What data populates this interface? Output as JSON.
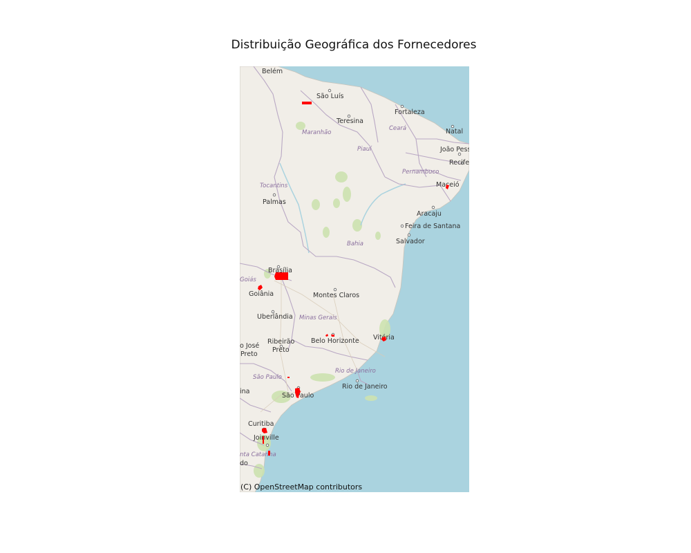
{
  "title": "Distribuição Geográfica dos Fornecedores",
  "attribution": "(C) OpenStreetMap contributors",
  "colors": {
    "land": "#f1eee8",
    "ocean": "#aad3df",
    "state_border": "#b9a8c4",
    "green": "#cde2b0",
    "city_text": "#333333",
    "state_text": "#8a6f9e",
    "supplier": "#ff0000"
  },
  "cities": [
    {
      "id": "belem",
      "name": "Belém"
    },
    {
      "id": "sao-luis",
      "name": "São Luís"
    },
    {
      "id": "fortaleza",
      "name": "Fortaleza"
    },
    {
      "id": "teresina",
      "name": "Teresina"
    },
    {
      "id": "natal",
      "name": "Natal"
    },
    {
      "id": "joao-pessoa",
      "name": "João Pess"
    },
    {
      "id": "recife",
      "name": "Recife"
    },
    {
      "id": "maceio",
      "name": "Maceió"
    },
    {
      "id": "palmas",
      "name": "Palmas"
    },
    {
      "id": "aracaju",
      "name": "Aracaju"
    },
    {
      "id": "feira-de-santana",
      "name": "Feira de Santana"
    },
    {
      "id": "salvador",
      "name": "Salvador"
    },
    {
      "id": "brasilia",
      "name": "Brasília"
    },
    {
      "id": "goiania",
      "name": "Goiânia"
    },
    {
      "id": "montes-claros",
      "name": "Montes Claros"
    },
    {
      "id": "uberlandia",
      "name": "Uberlândia"
    },
    {
      "id": "belo-horizonte",
      "name": "Belo Horizonte"
    },
    {
      "id": "vitoria",
      "name": "Vitória"
    },
    {
      "id": "sao-jose-rio-preto-1",
      "name": "o José"
    },
    {
      "id": "sao-jose-rio-preto-2",
      "name": "Preto"
    },
    {
      "id": "ribeirao-preto-1",
      "name": "Ribeirão"
    },
    {
      "id": "ribeirao-preto-2",
      "name": "Preto"
    },
    {
      "id": "rio-de-janeiro",
      "name": "Rio de Janeiro"
    },
    {
      "id": "sao-paulo",
      "name": "São Paulo"
    },
    {
      "id": "londrina",
      "name": "ina"
    },
    {
      "id": "curitiba",
      "name": "Curitiba"
    },
    {
      "id": "joinville",
      "name": "Joinville"
    },
    {
      "id": "blumenau",
      "name": "do"
    }
  ],
  "states": [
    {
      "id": "maranhao",
      "name": "Maranhão"
    },
    {
      "id": "ceara",
      "name": "Ceará"
    },
    {
      "id": "piaui",
      "name": "Piauí"
    },
    {
      "id": "pernambuco",
      "name": "Pernambuco"
    },
    {
      "id": "tocantins",
      "name": "Tocantins"
    },
    {
      "id": "bahia",
      "name": "Bahia"
    },
    {
      "id": "goias",
      "name": "Goiás"
    },
    {
      "id": "minas-gerais",
      "name": "Minas Gerais"
    },
    {
      "id": "rio-de-janeiro-state",
      "name": "Rio de Janeiro"
    },
    {
      "id": "sao-paulo-state",
      "name": "São Paulo"
    },
    {
      "id": "santa-catarina",
      "name": "nta Catarina"
    }
  ]
}
